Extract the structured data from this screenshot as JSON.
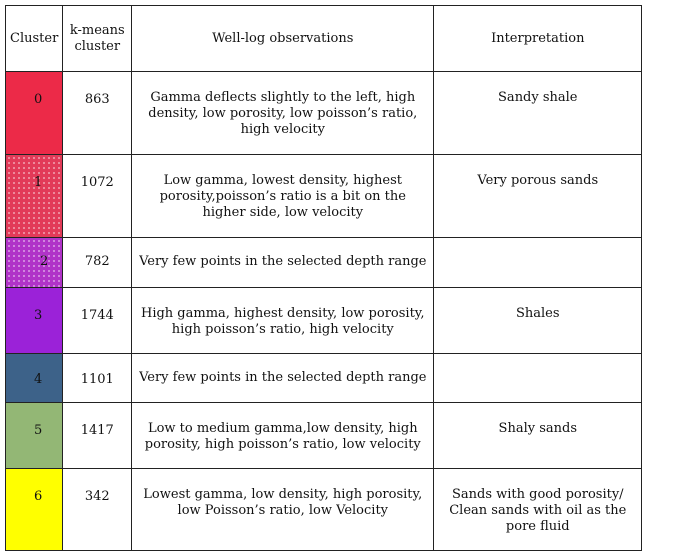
{
  "headers": {
    "cluster": "Cluster",
    "kmeans_line1": "k-means",
    "kmeans_line2": "cluster",
    "observations": "Well-log observations",
    "interpretation": "Interpretation"
  },
  "rows": [
    {
      "cluster": "0",
      "count": "863",
      "observation": "Gamma deflects slightly to the left, high density, low porosity, low poisson’s ratio, high velocity",
      "interpretation": "Sandy shale",
      "color": "#ec2a48"
    },
    {
      "cluster": "1",
      "count": "1072",
      "observation": "Low gamma, lowest density, highest porosity,poisson’s ratio is a bit on the higher side, low velocity",
      "interpretation": "Very porous sands",
      "color": "#e23a58"
    },
    {
      "cluster": "2",
      "count": "782",
      "observation": "Very few points in the selected depth range",
      "interpretation": "",
      "color": "#b033c8"
    },
    {
      "cluster": "3",
      "count": "1744",
      "observation": "High gamma, highest density, low porosity, high poisson’s ratio, high velocity",
      "interpretation": "Shales",
      "color": "#9b22d8"
    },
    {
      "cluster": "4",
      "count": "1101",
      "observation": "Very few points in the selected depth range",
      "interpretation": "",
      "color": "#3d6289"
    },
    {
      "cluster": "5",
      "count": "1417",
      "observation": "Low to medium gamma,low density, high porosity, high poisson’s ratio, low velocity",
      "interpretation": "Shaly sands",
      "color": "#93b775"
    },
    {
      "cluster": "6",
      "count": "342",
      "observation": "Lowest gamma, low density, high porosity, low Poisson’s ratio, low Velocity",
      "interpretation": "Sands with good porosity/ Clean sands with oil as the pore fluid",
      "color": "#ffff00"
    }
  ]
}
